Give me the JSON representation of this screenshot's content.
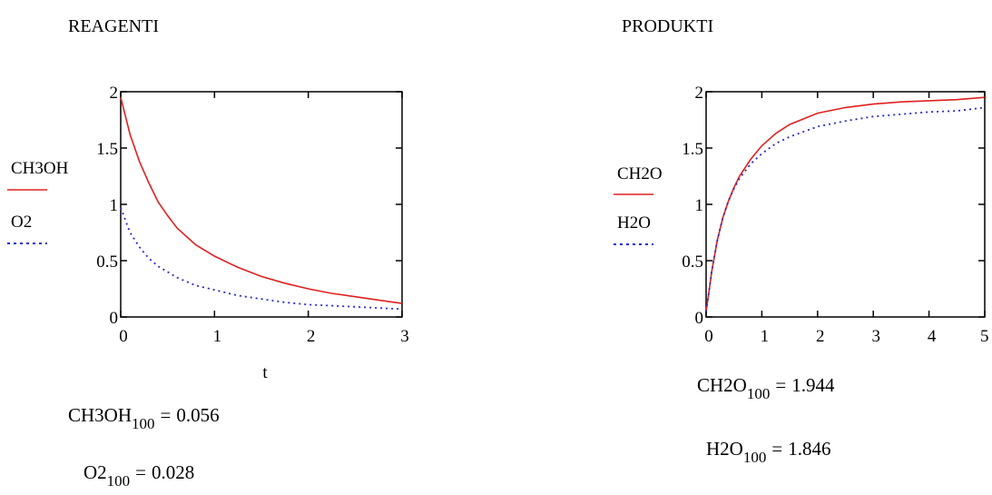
{
  "headings": {
    "left": "REAGENTI",
    "right": "PRODUKTI"
  },
  "chart_data": [
    {
      "type": "line",
      "title": "REAGENTI",
      "xlabel": "t",
      "ylabel": "",
      "xlim": [
        0,
        3
      ],
      "ylim": [
        0,
        2
      ],
      "xticks": [
        "0",
        "1",
        "2",
        "3"
      ],
      "yticks": [
        "0",
        "0.5",
        "1",
        "1.5",
        "2"
      ],
      "grid": false,
      "series": [
        {
          "name": "CH3OH",
          "color": "#e02020",
          "style": "solid",
          "x": [
            0,
            0.1,
            0.2,
            0.3,
            0.4,
            0.5,
            0.6,
            0.8,
            1.0,
            1.25,
            1.5,
            1.75,
            2.0,
            2.25,
            2.5,
            2.75,
            3.0
          ],
          "y": [
            1.95,
            1.62,
            1.38,
            1.19,
            1.02,
            0.9,
            0.79,
            0.64,
            0.54,
            0.44,
            0.36,
            0.3,
            0.25,
            0.21,
            0.18,
            0.15,
            0.12
          ]
        },
        {
          "name": "O2",
          "color": "#2828d0",
          "style": "dotted",
          "x": [
            0,
            0.1,
            0.2,
            0.3,
            0.4,
            0.5,
            0.6,
            0.8,
            1.0,
            1.25,
            1.5,
            1.75,
            2.0,
            2.25,
            2.5,
            2.75,
            3.0
          ],
          "y": [
            0.97,
            0.75,
            0.62,
            0.52,
            0.45,
            0.4,
            0.35,
            0.28,
            0.24,
            0.19,
            0.16,
            0.13,
            0.11,
            0.1,
            0.09,
            0.08,
            0.07
          ]
        }
      ]
    },
    {
      "type": "line",
      "title": "PRODUKTI",
      "xlabel": "",
      "ylabel": "",
      "xlim": [
        0,
        5
      ],
      "ylim": [
        0,
        2
      ],
      "xticks": [
        "0",
        "1",
        "2",
        "3",
        "4",
        "5"
      ],
      "yticks": [
        "0",
        "0.5",
        "1",
        "1.5",
        "2"
      ],
      "grid": false,
      "series": [
        {
          "name": "CH2O",
          "color": "#e02020",
          "style": "solid",
          "x": [
            0,
            0.05,
            0.1,
            0.2,
            0.3,
            0.4,
            0.5,
            0.6,
            0.8,
            1.0,
            1.25,
            1.5,
            2.0,
            2.5,
            3.0,
            3.5,
            4.0,
            4.5,
            5.0
          ],
          "y": [
            0.05,
            0.22,
            0.4,
            0.68,
            0.88,
            1.03,
            1.15,
            1.25,
            1.4,
            1.52,
            1.63,
            1.71,
            1.81,
            1.86,
            1.89,
            1.91,
            1.92,
            1.93,
            1.95
          ]
        },
        {
          "name": "H2O",
          "color": "#2828d0",
          "style": "dotted",
          "x": [
            0,
            0.05,
            0.1,
            0.2,
            0.3,
            0.4,
            0.5,
            0.6,
            0.8,
            1.0,
            1.25,
            1.5,
            2.0,
            2.5,
            3.0,
            3.5,
            4.0,
            4.5,
            5.0
          ],
          "y": [
            0.05,
            0.22,
            0.4,
            0.68,
            0.88,
            1.03,
            1.14,
            1.23,
            1.36,
            1.45,
            1.54,
            1.6,
            1.69,
            1.74,
            1.78,
            1.8,
            1.82,
            1.83,
            1.86
          ]
        }
      ]
    }
  ],
  "results": [
    {
      "name": "CH3OH",
      "sub": "100",
      "eq": "=",
      "value": "0.056"
    },
    {
      "name": "O2",
      "sub": "100",
      "eq": "=",
      "value": "0.028"
    },
    {
      "name": "CH2O",
      "sub": "100",
      "eq": "=",
      "value": "1.944"
    },
    {
      "name": "H2O",
      "sub": "100",
      "eq": "=",
      "value": "1.846"
    }
  ]
}
